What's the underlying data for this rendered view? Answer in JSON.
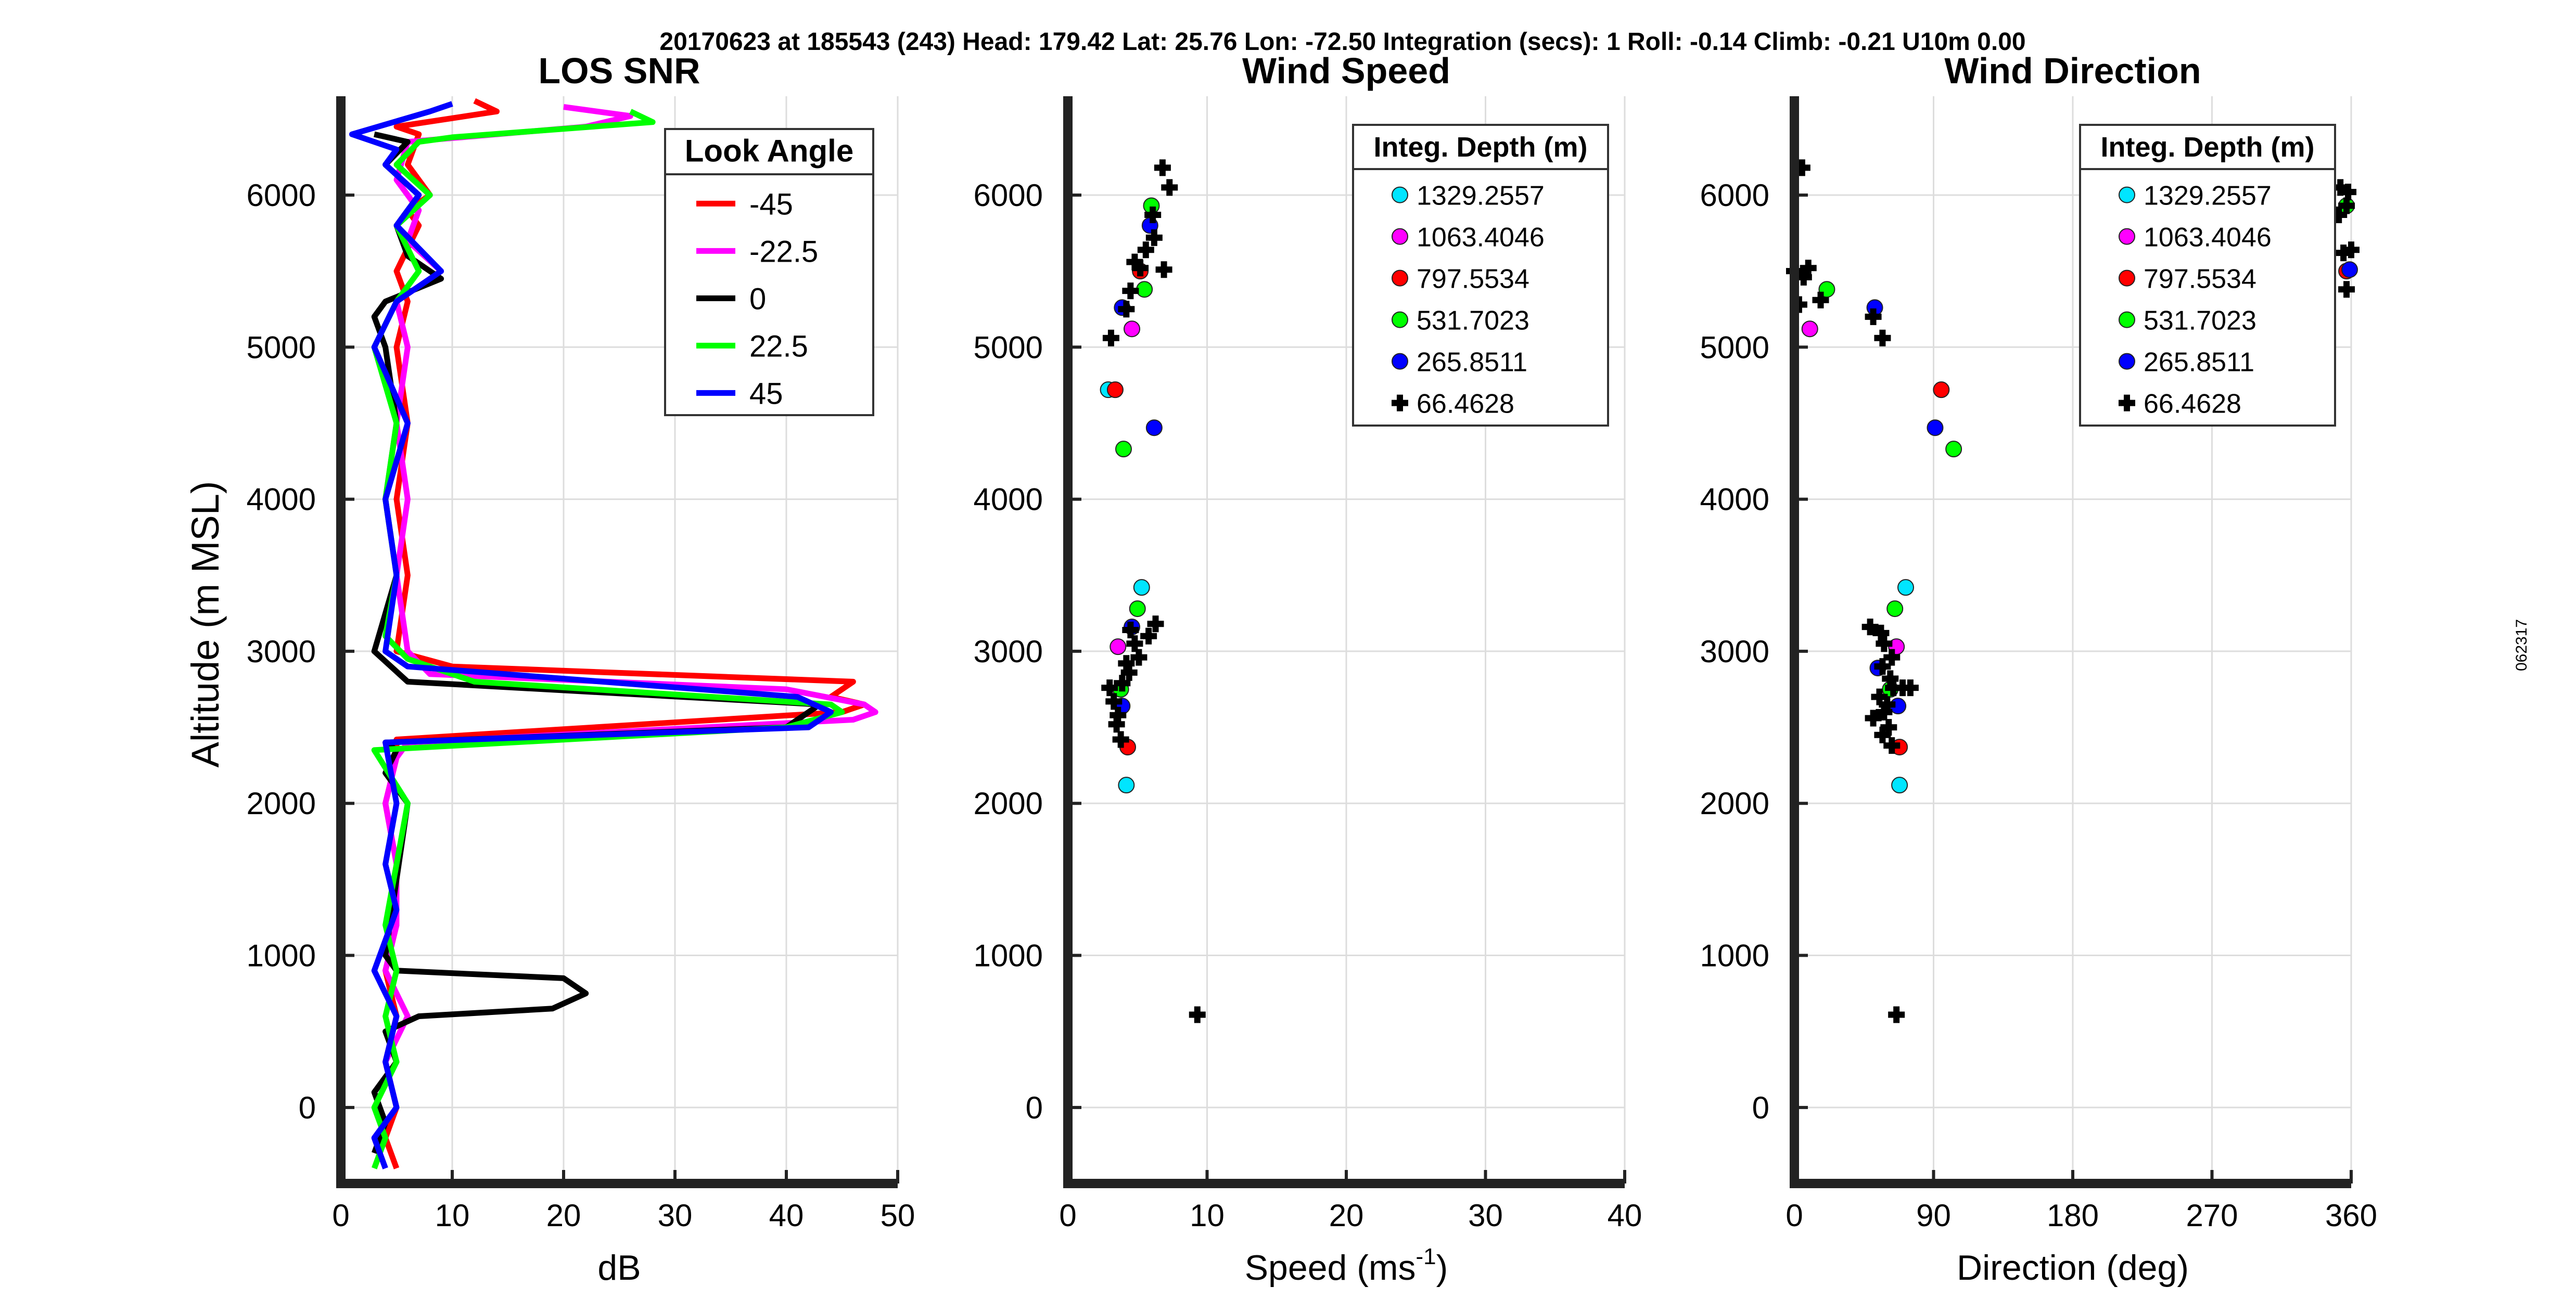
{
  "header": {
    "text": "20170623 at 185543 (243)  Head: 179.42  Lat: 25.76  Lon: -72.50  Integration (secs): 1  Roll: -0.14  Climb: -0.21  U10m 0.00"
  },
  "side_code": "062317",
  "y_axis_label": "Altitude (m MSL)",
  "colors": {
    "red": "#ff0000",
    "magenta": "#ff00ff",
    "black": "#000000",
    "green": "#00ff00",
    "blue": "#0000ff",
    "cyan": "#00e5ff",
    "grid": "#dddddd"
  },
  "chart_data": [
    {
      "type": "line",
      "title": "LOS SNR",
      "xlabel": "dB",
      "ylabel": "Altitude (m MSL)",
      "xlim": [
        0,
        50
      ],
      "ylim": [
        -500,
        6650
      ],
      "xticks": [
        0,
        10,
        20,
        30,
        40,
        50
      ],
      "yticks": [
        0,
        1000,
        2000,
        3000,
        4000,
        5000,
        6000
      ],
      "grid": true,
      "legend": {
        "title": "Look Angle",
        "location": "top-right",
        "entries": [
          "-45",
          "-22.5",
          "0",
          "22.5",
          "45"
        ]
      },
      "series": [
        {
          "name": "-45",
          "color": "#ff0000",
          "x": [
            5,
            4,
            5,
            4,
            5,
            4,
            5,
            5,
            4,
            5,
            5,
            45,
            47,
            44,
            46,
            10,
            5,
            6,
            5,
            6,
            5,
            6,
            5,
            7,
            6,
            8,
            6,
            7,
            5,
            14,
            12
          ],
          "y": [
            -400,
            -200,
            0,
            300,
            600,
            900,
            1200,
            1600,
            2000,
            2300,
            2420,
            2600,
            2650,
            2700,
            2800,
            2900,
            3000,
            3500,
            4000,
            4500,
            5000,
            5300,
            5500,
            5800,
            5900,
            6000,
            6200,
            6400,
            6450,
            6550,
            6620
          ]
        },
        {
          "name": "-22.5",
          "color": "#ff00ff",
          "x": [
            4,
            3,
            5,
            4,
            6,
            4,
            5,
            5,
            4,
            5,
            6,
            46,
            48,
            47,
            40,
            8,
            6,
            5,
            6,
            5,
            6,
            5,
            9,
            6,
            7,
            5,
            6,
            22,
            26,
            20
          ],
          "y": [
            -400,
            -200,
            0,
            300,
            600,
            900,
            1200,
            1600,
            2000,
            2300,
            2400,
            2550,
            2600,
            2650,
            2750,
            2850,
            3000,
            3500,
            4000,
            4500,
            5000,
            5300,
            5500,
            5700,
            5900,
            6100,
            6350,
            6450,
            6520,
            6580
          ]
        },
        {
          "name": "0",
          "color": "#000000",
          "x": [
            3,
            4,
            3,
            5,
            4,
            7,
            19,
            22,
            20,
            5,
            4,
            5,
            6,
            4,
            5,
            4,
            40,
            43,
            6,
            3,
            5,
            4,
            5,
            4,
            3,
            4,
            9,
            6,
            5,
            7,
            4,
            6,
            3
          ],
          "y": [
            -300,
            -100,
            100,
            300,
            500,
            600,
            650,
            750,
            850,
            900,
            1000,
            1500,
            2000,
            2200,
            2350,
            2400,
            2500,
            2650,
            2800,
            3000,
            3500,
            4000,
            4500,
            5000,
            5200,
            5300,
            5450,
            5600,
            5800,
            6000,
            6200,
            6350,
            6400
          ]
        },
        {
          "name": "22.5",
          "color": "#00ff00",
          "x": [
            3,
            4,
            3,
            5,
            4,
            5,
            4,
            5,
            6,
            3,
            40,
            45,
            44,
            12,
            6,
            4,
            5,
            4,
            5,
            3,
            5,
            7,
            5,
            8,
            5,
            7,
            10,
            28,
            26
          ],
          "y": [
            -400,
            -200,
            0,
            300,
            600,
            900,
            1200,
            1600,
            2000,
            2350,
            2500,
            2600,
            2650,
            2800,
            2950,
            3100,
            3500,
            4000,
            4500,
            5000,
            5300,
            5500,
            5800,
            6000,
            6200,
            6350,
            6380,
            6480,
            6550
          ]
        },
        {
          "name": "45",
          "color": "#0000ff",
          "x": [
            4,
            3,
            5,
            4,
            5,
            3,
            5,
            4,
            5,
            4,
            42,
            44,
            41,
            6,
            4,
            5,
            4,
            6,
            3,
            5,
            9,
            5,
            7,
            4,
            5,
            1,
            8,
            10
          ],
          "y": [
            -400,
            -200,
            0,
            300,
            600,
            900,
            1300,
            1600,
            2000,
            2400,
            2500,
            2600,
            2700,
            2900,
            3000,
            3500,
            4000,
            4500,
            5000,
            5300,
            5500,
            5800,
            6000,
            6200,
            6300,
            6400,
            6550,
            6600
          ]
        }
      ]
    },
    {
      "type": "scatter",
      "title": "Wind Speed",
      "xlabel": "Speed (ms",
      "xlabel_sup": "-1",
      "xlabel_end": ")",
      "xlim": [
        0,
        40
      ],
      "ylim": [
        -500,
        6650
      ],
      "xticks": [
        0,
        10,
        20,
        30,
        40
      ],
      "yticks": [
        0,
        1000,
        2000,
        3000,
        4000,
        5000,
        6000
      ],
      "grid": true,
      "legend": {
        "title": "Integ. Depth (m)",
        "location": "top-right",
        "entries": [
          "1329.2557",
          "1063.4046",
          "797.5534",
          "531.7023",
          "265.8511",
          "66.4628"
        ]
      },
      "series": [
        {
          "name": "1329.2557",
          "color": "#00e5ff",
          "marker": "o",
          "x": [
            4.2,
            5.3,
            2.9
          ],
          "y": [
            2120,
            3420,
            4720
          ]
        },
        {
          "name": "1063.4046",
          "color": "#ff00ff",
          "marker": "o",
          "x": [
            3.6,
            4.6
          ],
          "y": [
            3030,
            5120
          ]
        },
        {
          "name": "797.5534",
          "color": "#ff0000",
          "marker": "o",
          "x": [
            4.3,
            3.4,
            5.2
          ],
          "y": [
            2370,
            4720,
            5500
          ]
        },
        {
          "name": "531.7023",
          "color": "#00ff00",
          "marker": "o",
          "x": [
            3.8,
            5.0,
            4.0,
            5.5,
            6.0
          ],
          "y": [
            2750,
            3280,
            4330,
            5380,
            5930
          ]
        },
        {
          "name": "265.8511",
          "color": "#0000ff",
          "marker": "o",
          "x": [
            3.9,
            4.6,
            6.2,
            3.9,
            5.9
          ],
          "y": [
            2640,
            3160,
            4470,
            5260,
            5800
          ]
        },
        {
          "name": "66.4628",
          "color": "#000000",
          "marker": "+",
          "x": [
            9.3,
            3.8,
            3.5,
            3.6,
            3.3,
            3.0,
            3.9,
            4.4,
            4.2,
            5.1,
            4.8,
            4.5,
            5.8,
            6.3,
            3.1,
            4.2,
            4.5,
            5.2,
            4.8,
            6.9,
            5.6,
            6.2,
            7.3,
            6.1,
            6.8
          ],
          "y": [
            610,
            2420,
            2520,
            2580,
            2670,
            2760,
            2790,
            2860,
            2920,
            2960,
            3050,
            3140,
            3100,
            3180,
            5060,
            5250,
            5370,
            5520,
            5560,
            5510,
            5640,
            5720,
            6050,
            5870,
            6180
          ]
        }
      ]
    },
    {
      "type": "scatter",
      "title": "Wind Direction",
      "xlabel": "Direction (deg)",
      "xlim": [
        0,
        360
      ],
      "ylim": [
        -500,
        6650
      ],
      "xticks": [
        0,
        90,
        180,
        270,
        360
      ],
      "yticks": [
        0,
        1000,
        2000,
        3000,
        4000,
        5000,
        6000
      ],
      "grid": true,
      "legend": {
        "title": "Integ. Depth (m)",
        "location": "top-right",
        "entries": [
          "1329.2557",
          "1063.4046",
          "797.5534",
          "531.7023",
          "265.8511",
          "66.4628"
        ]
      },
      "series": [
        {
          "name": "1329.2557",
          "color": "#00e5ff",
          "marker": "o",
          "x": [
            68,
            72
          ],
          "y": [
            2120,
            3420
          ]
        },
        {
          "name": "1063.4046",
          "color": "#ff00ff",
          "marker": "o",
          "x": [
            66,
            10
          ],
          "y": [
            3030,
            5120
          ]
        },
        {
          "name": "797.5534",
          "color": "#ff0000",
          "marker": "o",
          "x": [
            68,
            95,
            357
          ],
          "y": [
            2370,
            4720,
            5500
          ]
        },
        {
          "name": "531.7023",
          "color": "#00ff00",
          "marker": "o",
          "x": [
            62,
            65,
            103,
            21,
            357
          ],
          "y": [
            2750,
            3280,
            4330,
            5380,
            5930
          ]
        },
        {
          "name": "265.8511",
          "color": "#0000ff",
          "marker": "o",
          "x": [
            54,
            67,
            91,
            52,
            359
          ],
          "y": [
            2890,
            2640,
            4470,
            5260,
            5510
          ]
        },
        {
          "name": "66.4628",
          "color": "#000000",
          "marker": "+",
          "x": [
            66,
            63,
            57,
            61,
            51,
            58,
            60,
            55,
            64,
            62,
            70,
            49,
            56,
            58,
            63,
            57,
            75,
            57,
            51,
            3,
            6,
            9,
            17,
            0,
            357,
            355,
            360,
            352,
            357,
            353,
            358,
            5
          ],
          "y": [
            610,
            2380,
            2450,
            2500,
            2560,
            2600,
            2650,
            2700,
            2760,
            2820,
            2760,
            3160,
            3120,
            3050,
            2960,
            2900,
            2760,
            5060,
            5200,
            5280,
            5460,
            5520,
            5310,
            5500,
            5380,
            5620,
            5640,
            5870,
            5930,
            6050,
            6020,
            6180
          ]
        }
      ]
    }
  ]
}
